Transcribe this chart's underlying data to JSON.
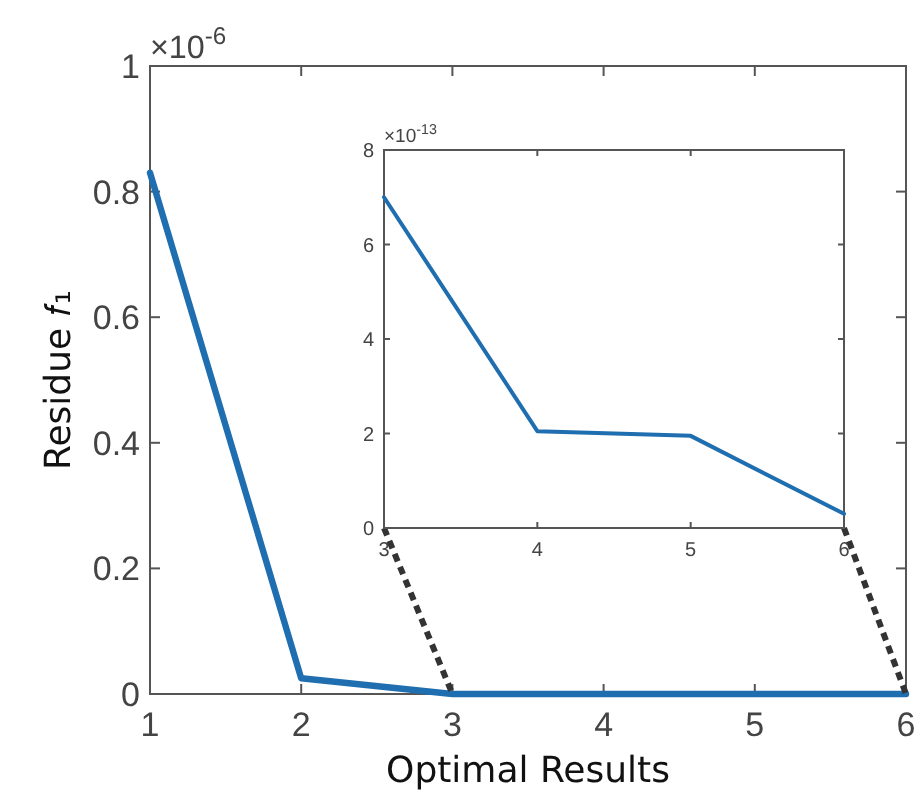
{
  "chart_data": [
    {
      "type": "line",
      "x": [
        1,
        2,
        3,
        4,
        5,
        6
      ],
      "series": [
        {
          "color": "#1f6eb0",
          "values": [
            0.83,
            0.025,
            0,
            0,
            0,
            0
          ]
        }
      ],
      "xlim": [
        1,
        6
      ],
      "ylim": [
        0,
        1
      ],
      "xticks": [
        1,
        2,
        3,
        4,
        5,
        6
      ],
      "yticks": [
        0,
        0.2,
        0.4,
        0.6,
        0.8,
        1
      ],
      "xlabel": "Optimal Results",
      "ylabel": "Residue 𝑓₁",
      "annotations": [
        "×10$^{-6}$"
      ],
      "grid": false
    },
    {
      "type": "line",
      "x": [
        3,
        4,
        5,
        6
      ],
      "series": [
        {
          "color": "#1f6eb0",
          "values": [
            7,
            2.05,
            1.95,
            0.3
          ]
        }
      ],
      "xlim": [
        3,
        6
      ],
      "ylim": [
        0,
        8
      ],
      "xticks": [
        3,
        4,
        5,
        6
      ],
      "yticks": [
        0,
        2,
        4,
        6,
        8
      ],
      "annotations": [
        "×10$^{-13}$"
      ],
      "grid": false
    }
  ]
}
